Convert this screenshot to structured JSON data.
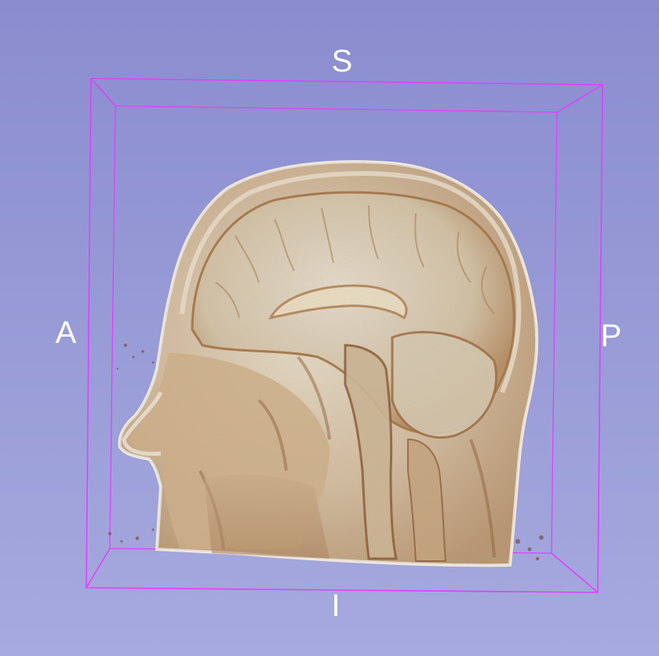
{
  "viewer": {
    "view_type": "3D volume rendering",
    "background_colors": {
      "top": "#8a8ccf",
      "bottom": "#a6aade"
    },
    "bounding_box_color": "#e040ff",
    "volume_colors": {
      "tissue_light": "#e8dcc4",
      "tissue_mid": "#c8a884",
      "tissue_dark": "#8a5a34",
      "skin_edge": "#f2ece0"
    },
    "orientation_labels": {
      "superior": "S",
      "inferior": "I",
      "anterior": "A",
      "posterior": "P"
    }
  }
}
